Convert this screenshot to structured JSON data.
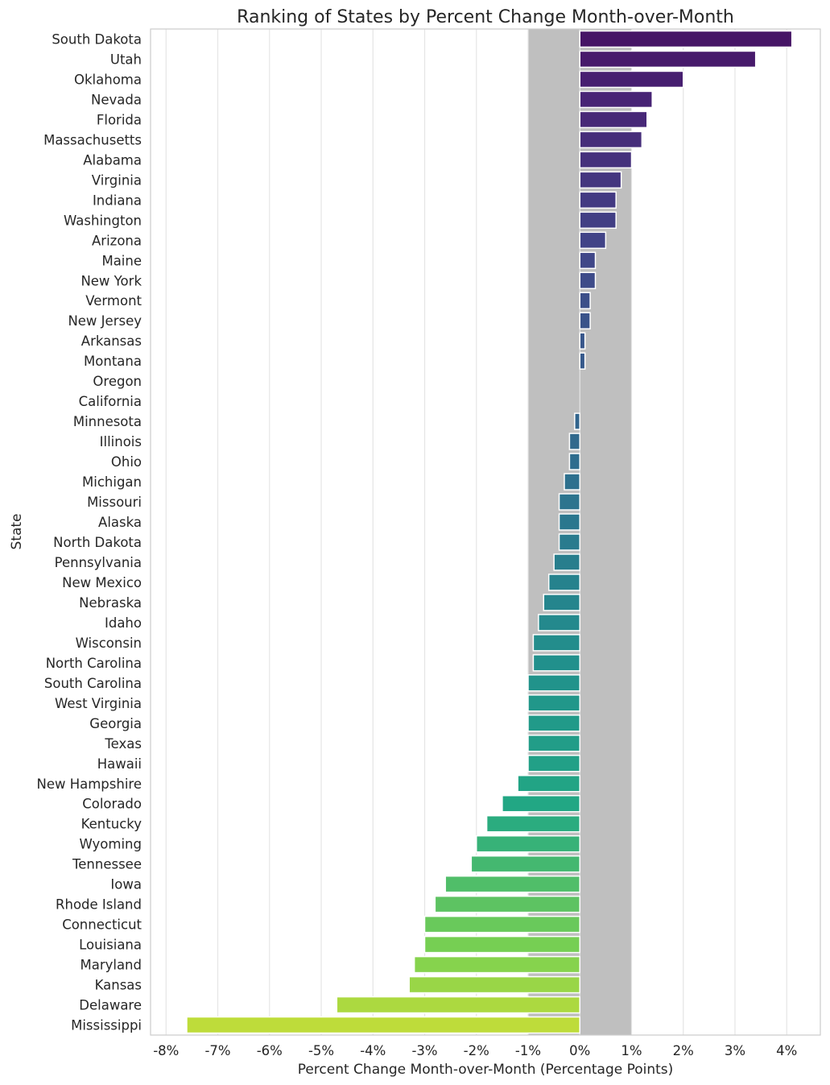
{
  "chart_data": {
    "type": "bar",
    "orientation": "horizontal",
    "title": "Ranking of States by Percent Change Month-over-Month",
    "xlabel": "Percent Change Month-over-Month (Percentage Points)",
    "ylabel": "State",
    "xlim": [
      -8.3,
      4.65
    ],
    "x_ticks": [
      -8,
      -7,
      -6,
      -5,
      -4,
      -3,
      -2,
      -1,
      0,
      1,
      2,
      3,
      4
    ],
    "x_tick_labels": [
      "-8%",
      "-7%",
      "-6%",
      "-5%",
      "-4%",
      "-3%",
      "-2%",
      "-1%",
      "0%",
      "1%",
      "2%",
      "3%",
      "4%"
    ],
    "grid": "vertical",
    "highlight_band": [
      -1,
      1
    ],
    "highlight_band_color": "#bfbfbf",
    "palette": "viridis",
    "categories": [
      "South Dakota",
      "Utah",
      "Oklahoma",
      "Nevada",
      "Florida",
      "Massachusetts",
      "Alabama",
      "Virginia",
      "Indiana",
      "Washington",
      "Arizona",
      "Maine",
      "New York",
      "Vermont",
      "New Jersey",
      "Arkansas",
      "Montana",
      "Oregon",
      "California",
      "Minnesota",
      "Illinois",
      "Ohio",
      "Michigan",
      "Missouri",
      "Alaska",
      "North Dakota",
      "Pennsylvania",
      "New Mexico",
      "Nebraska",
      "Idaho",
      "Wisconsin",
      "North Carolina",
      "South Carolina",
      "West Virginia",
      "Georgia",
      "Texas",
      "Hawaii",
      "New Hampshire",
      "Colorado",
      "Kentucky",
      "Wyoming",
      "Tennessee",
      "Iowa",
      "Rhode Island",
      "Connecticut",
      "Louisiana",
      "Maryland",
      "Kansas",
      "Delaware",
      "Mississippi"
    ],
    "values": [
      4.1,
      3.4,
      2.0,
      1.4,
      1.3,
      1.2,
      1.0,
      0.8,
      0.7,
      0.7,
      0.5,
      0.3,
      0.3,
      0.2,
      0.2,
      0.1,
      0.1,
      0.0,
      0.0,
      -0.1,
      -0.2,
      -0.2,
      -0.3,
      -0.4,
      -0.4,
      -0.4,
      -0.5,
      -0.6,
      -0.7,
      -0.8,
      -0.9,
      -0.9,
      -1.0,
      -1.0,
      -1.0,
      -1.0,
      -1.0,
      -1.2,
      -1.5,
      -1.8,
      -2.0,
      -2.1,
      -2.6,
      -2.8,
      -3.0,
      -3.0,
      -3.2,
      -3.3,
      -4.7,
      -7.6
    ]
  }
}
